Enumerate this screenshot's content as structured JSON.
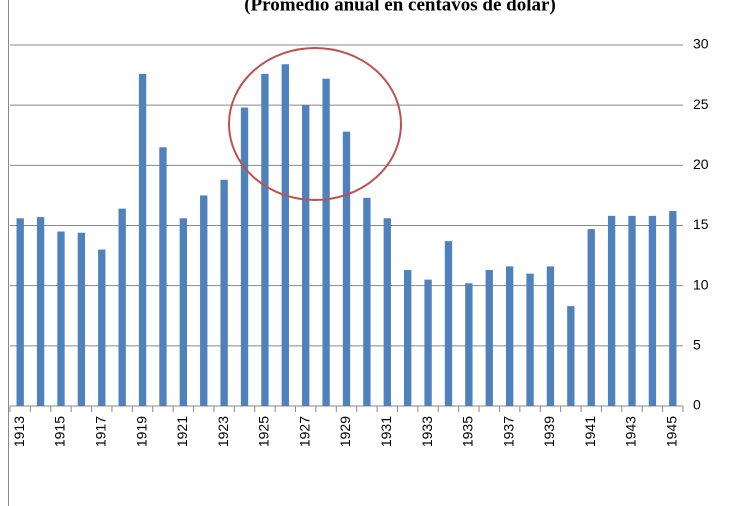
{
  "chart_data": {
    "type": "bar",
    "title": "(Promedio anual en centavos de dólar)",
    "categories": [
      "1913",
      null,
      "1915",
      null,
      "1917",
      null,
      "1919",
      null,
      "1921",
      null,
      "1923",
      null,
      "1925",
      null,
      "1927",
      null,
      "1929",
      null,
      "1931",
      null,
      "1933",
      null,
      "1935",
      null,
      "1937",
      null,
      "1939",
      null,
      "1941",
      null,
      "1943",
      null,
      "1945"
    ],
    "values": [
      15.6,
      15.7,
      14.5,
      14.4,
      13.0,
      16.4,
      27.6,
      21.5,
      15.6,
      17.5,
      18.8,
      24.8,
      27.6,
      28.4,
      25.0,
      27.2,
      22.8,
      17.3,
      15.6,
      11.3,
      10.5,
      13.7,
      10.2,
      11.3,
      11.6,
      11.0,
      11.6,
      8.3,
      14.7,
      15.8,
      15.8,
      15.8,
      16.2
    ],
    "color": "#4f81bd",
    "ylim": [
      0,
      30
    ],
    "yticks": [
      0,
      5,
      10,
      15,
      20,
      25,
      30
    ],
    "grid": true,
    "y_axis_side": "right"
  }
}
